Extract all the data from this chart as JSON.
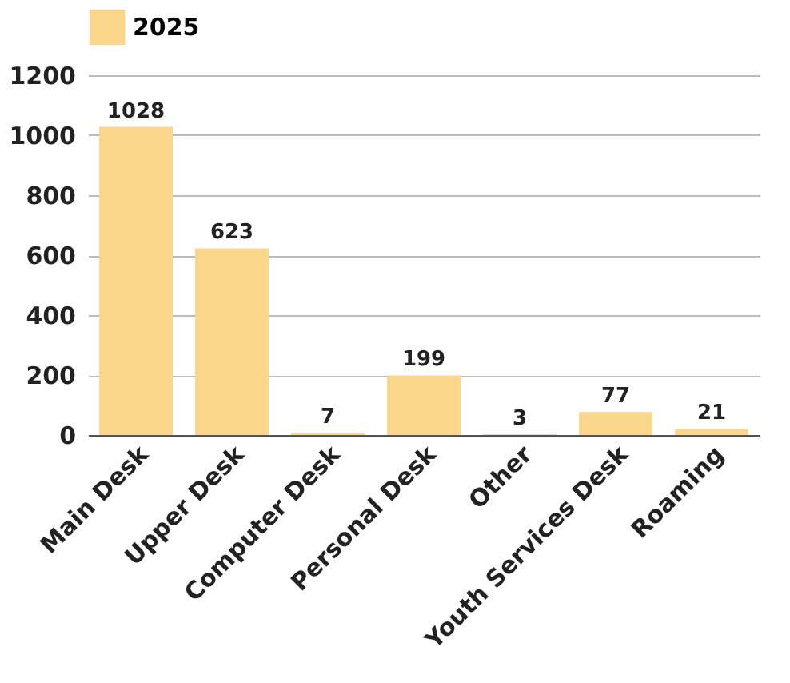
{
  "chart_data": {
    "type": "bar",
    "categories": [
      "Main Desk",
      "Upper Desk",
      "Computer Desk",
      "Personal Desk",
      "Other",
      "Youth Services Desk",
      "Roaming"
    ],
    "series": [
      {
        "name": "2025",
        "color": "#f9d68a",
        "values": [
          1028,
          623,
          7,
          199,
          3,
          77,
          21
        ]
      }
    ],
    "ylim": [
      0,
      1200
    ],
    "yticks": [
      0,
      200,
      400,
      600,
      800,
      1000,
      1200
    ],
    "grid": "y",
    "legend": "top",
    "data_labels": true
  }
}
